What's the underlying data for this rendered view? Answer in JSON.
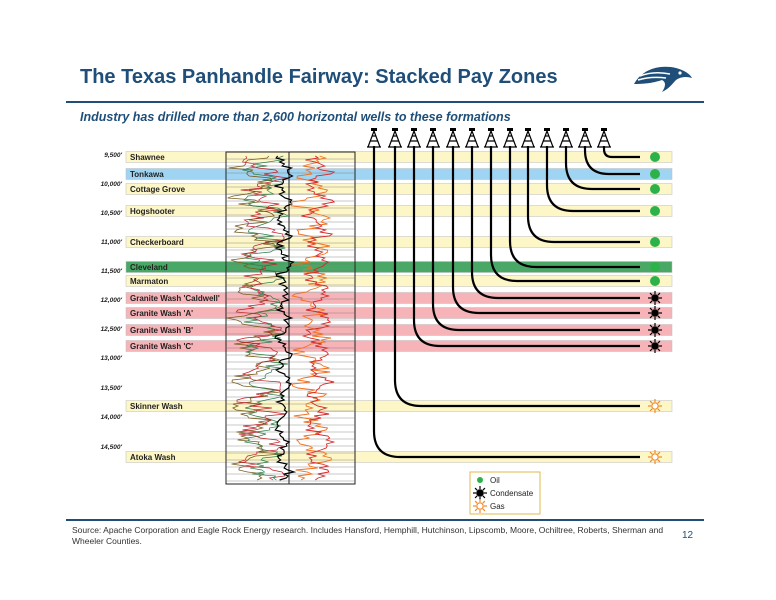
{
  "header": {
    "title": "The Texas Panhandle Fairway: Stacked Pay Zones",
    "subtitle": "Industry has drilled more than 2,600 horizontal wells to these formations",
    "logo_icon": "eagle-head-logo-icon"
  },
  "diagram": {
    "depth_labels": [
      "9,500'",
      "10,000'",
      "10,500'",
      "11,000'",
      "11,500'",
      "12,000'",
      "12,500'",
      "13,000'",
      "13,500'",
      "14,000'",
      "14,500'"
    ],
    "zones": [
      {
        "name": "Shawnee",
        "fluid": "oil",
        "band_color": "#fdf6c7"
      },
      {
        "name": "Tonkawa",
        "fluid": "oil",
        "band_color": "#9fd4f3"
      },
      {
        "name": "Cottage Grove",
        "fluid": "oil",
        "band_color": "#fdf6c7"
      },
      {
        "name": "Hogshooter",
        "fluid": "oil",
        "band_color": "#fdf6c7"
      },
      {
        "name": "Checkerboard",
        "fluid": "oil",
        "band_color": "#fdf6c7"
      },
      {
        "name": "Cleveland",
        "fluid": "oil",
        "band_color": "#4aa866"
      },
      {
        "name": "Marmaton",
        "fluid": "oil",
        "band_color": "#fdf6c7"
      },
      {
        "name": "Granite Wash 'Caldwell'",
        "fluid": "condensate",
        "band_color": "#f6b3b8"
      },
      {
        "name": "Granite Wash 'A'",
        "fluid": "condensate",
        "band_color": "#f6b3b8"
      },
      {
        "name": "Granite Wash 'B'",
        "fluid": "condensate",
        "band_color": "#f6b3b8"
      },
      {
        "name": "Granite Wash 'C'",
        "fluid": "condensate",
        "band_color": "#f6b3b8"
      },
      {
        "name": "Skinner Wash",
        "fluid": "gas",
        "band_color": "#fdf6c7"
      },
      {
        "name": "Atoka Wash",
        "fluid": "gas",
        "band_color": "#fdf6c7"
      }
    ],
    "wells_icon": "drilling-rig-icon",
    "legend": {
      "items": [
        {
          "label": "Oil",
          "icon": "green-dot-icon",
          "color": "#2db24a"
        },
        {
          "label": "Condensate",
          "icon": "black-sun-icon",
          "color": "#000000"
        },
        {
          "label": "Gas",
          "icon": "orange-sun-icon",
          "color": "#f08a2b"
        }
      ]
    }
  },
  "footer": {
    "source": "Source: Apache Corporation and Eagle Rock Energy research.  Includes Hansford, Hemphill, Hutchinson, Lipscomb, Moore, Ochiltree, Roberts, Sherman and Wheeler Counties.",
    "page_number": "12"
  }
}
